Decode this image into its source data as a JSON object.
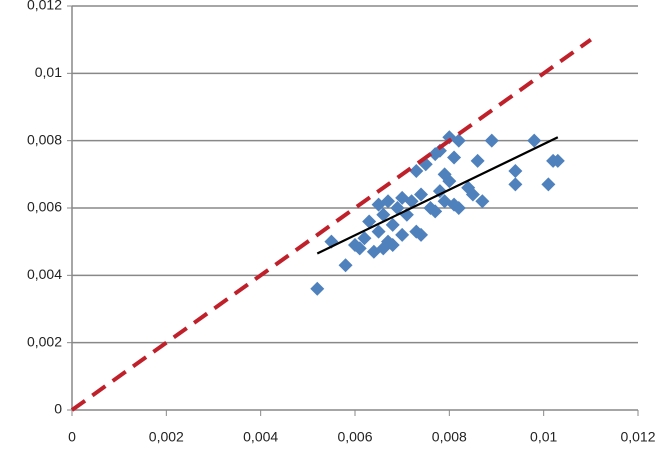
{
  "chart_data": {
    "type": "scatter",
    "xlim": [
      0,
      0.012
    ],
    "ylim": [
      0,
      0.012
    ],
    "xticks": [
      0,
      {
        "value": 0.002,
        "label": "0,002"
      },
      {
        "value": 0.004,
        "label": "0,004"
      },
      {
        "value": 0.006,
        "label": "0,006"
      },
      {
        "value": 0.008,
        "label": "0,008"
      },
      {
        "value": 0.01,
        "label": "0,01"
      },
      {
        "value": 0.012,
        "label": "0,012"
      }
    ],
    "yticks": [
      0,
      {
        "value": 0.002,
        "label": "0,002"
      },
      {
        "value": 0.004,
        "label": "0,004"
      },
      {
        "value": 0.006,
        "label": "0,006"
      },
      {
        "value": 0.008,
        "label": "0,008"
      },
      {
        "value": 0.01,
        "label": "0,01"
      },
      {
        "value": 0.012,
        "label": "0,012"
      }
    ],
    "grid": true,
    "series": [
      {
        "type": "scatter",
        "color": "#4f81bd",
        "x": [
          0.0052,
          0.0055,
          0.0058,
          0.006,
          0.0061,
          0.0062,
          0.0063,
          0.0064,
          0.0065,
          0.0065,
          0.0066,
          0.0066,
          0.0067,
          0.0067,
          0.0068,
          0.0068,
          0.0069,
          0.007,
          0.007,
          0.0071,
          0.0072,
          0.0073,
          0.0073,
          0.0074,
          0.0074,
          0.0075,
          0.0076,
          0.0077,
          0.0077,
          0.0078,
          0.0078,
          0.0079,
          0.0079,
          0.008,
          0.008,
          0.0081,
          0.0081,
          0.0082,
          0.0082,
          0.0084,
          0.0085,
          0.0086,
          0.0087,
          0.0089,
          0.0094,
          0.0094,
          0.0098,
          0.0101,
          0.0102,
          0.0103
        ],
        "values": [
          0.0036,
          0.005,
          0.0043,
          0.0049,
          0.0048,
          0.0051,
          0.0056,
          0.0047,
          0.0053,
          0.0061,
          0.0048,
          0.0058,
          0.005,
          0.0062,
          0.0055,
          0.0049,
          0.006,
          0.0063,
          0.0052,
          0.0058,
          0.0062,
          0.0053,
          0.0071,
          0.0064,
          0.0052,
          0.0073,
          0.006,
          0.0059,
          0.0076,
          0.0065,
          0.0077,
          0.0062,
          0.007,
          0.0081,
          0.0068,
          0.0075,
          0.0061,
          0.008,
          0.006,
          0.0066,
          0.0064,
          0.0074,
          0.0062,
          0.008,
          0.0067,
          0.0071,
          0.008,
          0.0067,
          0.0074,
          0.0074
        ]
      },
      {
        "type": "line",
        "color": "#c0202a",
        "dashed": true,
        "x": [
          0,
          0.011
        ],
        "values": [
          0,
          0.011
        ]
      },
      {
        "type": "line",
        "color": "#000000",
        "dashed": false,
        "x": [
          0.0052,
          0.0103
        ],
        "values": [
          0.00465,
          0.0081
        ]
      }
    ]
  }
}
